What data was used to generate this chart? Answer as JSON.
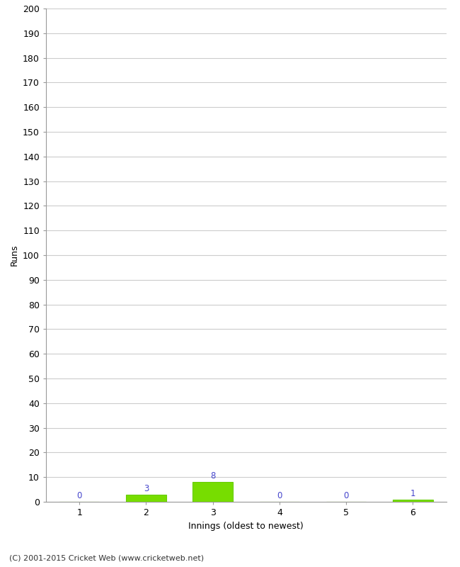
{
  "innings": [
    1,
    2,
    3,
    4,
    5,
    6
  ],
  "runs": [
    0,
    3,
    8,
    0,
    0,
    1
  ],
  "bar_color": "#77dd00",
  "bar_edge_color": "#66cc00",
  "label_color": "#4444cc",
  "xlabel": "Innings (oldest to newest)",
  "ylabel": "Runs",
  "ylim": [
    0,
    200
  ],
  "yticks": [
    0,
    10,
    20,
    30,
    40,
    50,
    60,
    70,
    80,
    90,
    100,
    110,
    120,
    130,
    140,
    150,
    160,
    170,
    180,
    190,
    200
  ],
  "footer": "(C) 2001-2015 Cricket Web (www.cricketweb.net)",
  "background_color": "#ffffff",
  "grid_color": "#cccccc",
  "label_fontsize": 8.5,
  "axis_tick_fontsize": 9,
  "axis_label_fontsize": 9,
  "footer_fontsize": 8
}
